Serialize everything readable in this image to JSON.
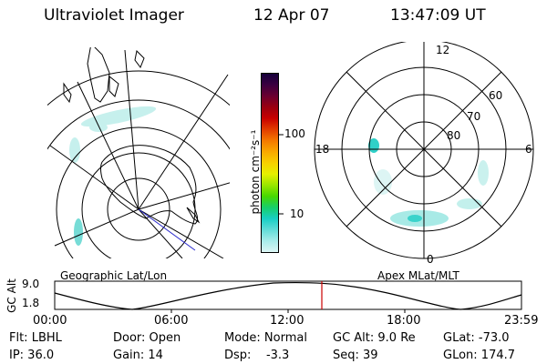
{
  "header": {
    "title": "Ultraviolet Imager",
    "date": "12 Apr 07",
    "time": "13:47:09 UT"
  },
  "left_panel": {
    "label": "Geographic Lat/Lon"
  },
  "right_panel": {
    "label": "Apex MLat/MLT",
    "mlt_labels": [
      "12",
      "18",
      "6",
      "0"
    ],
    "mlat_labels": [
      "60",
      "70",
      "80"
    ]
  },
  "colorbar": {
    "unit_label": "photon cm⁻²s⁻¹",
    "tick_labels": [
      "100",
      "10"
    ],
    "colors": [
      "#15003a",
      "#3b0040",
      "#6a0030",
      "#9a0010",
      "#c80000",
      "#e23c00",
      "#f47800",
      "#f9a800",
      "#f7d000",
      "#e6f000",
      "#9ae600",
      "#46d800",
      "#17cf6a",
      "#18cfc4",
      "#62dcd8",
      "#a8ecea",
      "#dcf6f5"
    ]
  },
  "timeline": {
    "y_axis_label": "GC Alt",
    "y_ticks": [
      "9.0",
      "1.8"
    ],
    "x_ticks": [
      "00:00",
      "06:00",
      "12:00",
      "18:00",
      "23:59"
    ],
    "marker_color": "#cc0000"
  },
  "info": {
    "filter": "Flt: LBHL",
    "ip": "IP: 36.0",
    "door": "Door: Open",
    "gain": "Gain: 14",
    "mode": "Mode: Normal",
    "dsp": "Dsp:    -3.3",
    "gc_alt": "GC Alt: 9.0 Re",
    "seq": "Seq: 39",
    "glat": "GLat: -73.0",
    "glon": "GLon: 174.7"
  }
}
